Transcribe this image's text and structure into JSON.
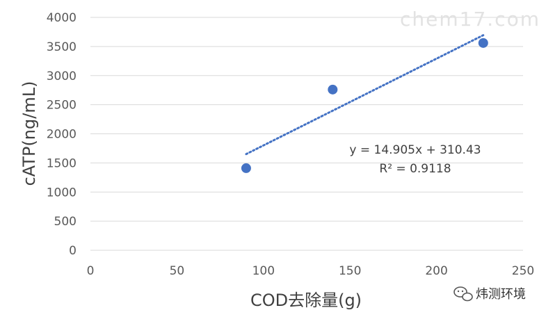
{
  "chart_data": {
    "type": "scatter",
    "xlabel": "COD去除量(g)",
    "ylabel": "cATP(ng/mL)",
    "xlim": [
      0,
      250
    ],
    "ylim": [
      0,
      4000
    ],
    "x_ticks": [
      0,
      50,
      100,
      150,
      200,
      250
    ],
    "y_ticks": [
      0,
      500,
      1000,
      1500,
      2000,
      2500,
      3000,
      3500,
      4000
    ],
    "x_tick_labels": [
      "0",
      "50",
      "100",
      "150",
      "200",
      "250"
    ],
    "y_tick_labels": [
      "0",
      "500",
      "1000",
      "1500",
      "2000",
      "2500",
      "3000",
      "3500",
      "4000"
    ],
    "grid": "horizontal",
    "series": [
      {
        "x": [
          90,
          140,
          227
        ],
        "y": [
          1410,
          2760,
          3560
        ],
        "color": "#4472C4"
      }
    ],
    "trendline": {
      "type": "linear",
      "slope": 14.905,
      "intercept": 310.43,
      "x_range": [
        90,
        227
      ],
      "style": "dotted",
      "color": "#4472C4"
    },
    "annotations": {
      "equation": "y = 14.905x + 310.43",
      "r_squared": "R² = 0.9118"
    }
  },
  "watermark": "chem17.com",
  "brand": {
    "name": "炜测环境",
    "icon": "wechat-icon"
  }
}
